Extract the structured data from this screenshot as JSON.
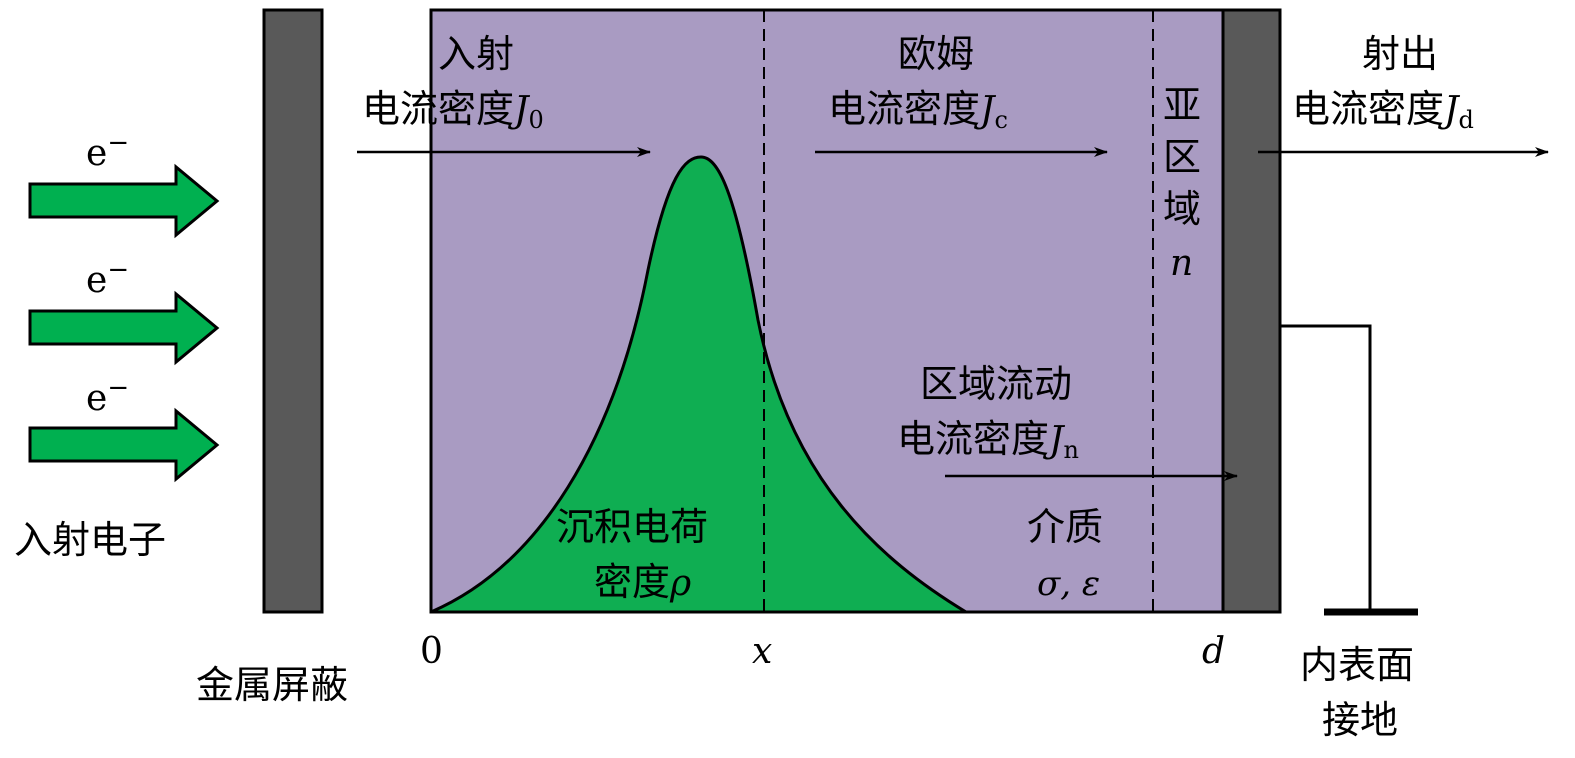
{
  "colors": {
    "dielectric": "#a99bc2",
    "charge": "#0fae52",
    "arrow_fill": "#00b050",
    "metal": "#595959"
  },
  "electrons": {
    "symbol": "e",
    "sup": "−",
    "label": "入射电子"
  },
  "shield_label": "金属屏蔽",
  "incident": {
    "line1": "入射",
    "line2": "电流密度",
    "sym": "J",
    "sub": "0"
  },
  "ohm": {
    "line1": "欧姆",
    "line2": "电流密度",
    "sym": "J",
    "sub": "c"
  },
  "emit": {
    "line1": "射出",
    "line2": "电流密度",
    "sym": "J",
    "sub": "d"
  },
  "subregion": {
    "c1": "亚",
    "c2": "区",
    "c3": "域",
    "sym": "n"
  },
  "region_flow": {
    "line1": "区域流动",
    "line2": "电流密度",
    "sym": "J",
    "sub": "n"
  },
  "charge": {
    "line1": "沉积电荷",
    "line2": "密度",
    "sym": "ρ"
  },
  "medium": {
    "line1": "介质",
    "line2": "σ, ε"
  },
  "axis": {
    "origin": "0",
    "x": "x",
    "d": "d"
  },
  "ground": {
    "line1": "内表面",
    "line2": "接地"
  }
}
